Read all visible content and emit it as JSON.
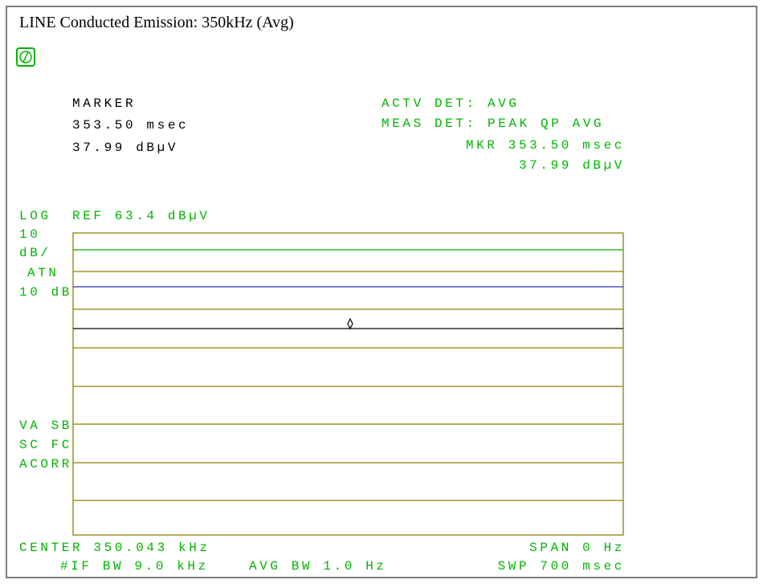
{
  "title": "LINE Conducted Emission: 350kHz (Avg)",
  "marker": {
    "label": "MARKER",
    "time": "353.50 msec",
    "level": "37.99 dBµV"
  },
  "detector": {
    "active": "ACTV DET: AVG",
    "measure": "MEAS DET: PEAK QP AVG",
    "mkr_time": "MKR 353.50 msec",
    "mkr_level": "37.99 dBµV"
  },
  "scale": {
    "mode": "LOG",
    "ref": "REF 63.4 dBµV",
    "div_value": "10",
    "div_unit": "dB/",
    "atn": "ATN",
    "atn_value": "10 dB"
  },
  "side_labels": [
    "VA SB",
    "SC FC",
    "ACORR"
  ],
  "footer": {
    "center": "CENTER 350.043 kHz",
    "span": "SPAN 0 Hz",
    "if_bw": "#IF BW 9.0 kHz",
    "avg_bw": "AVG BW 1.0 Hz",
    "sweep": "SWP 700 msec"
  }
}
